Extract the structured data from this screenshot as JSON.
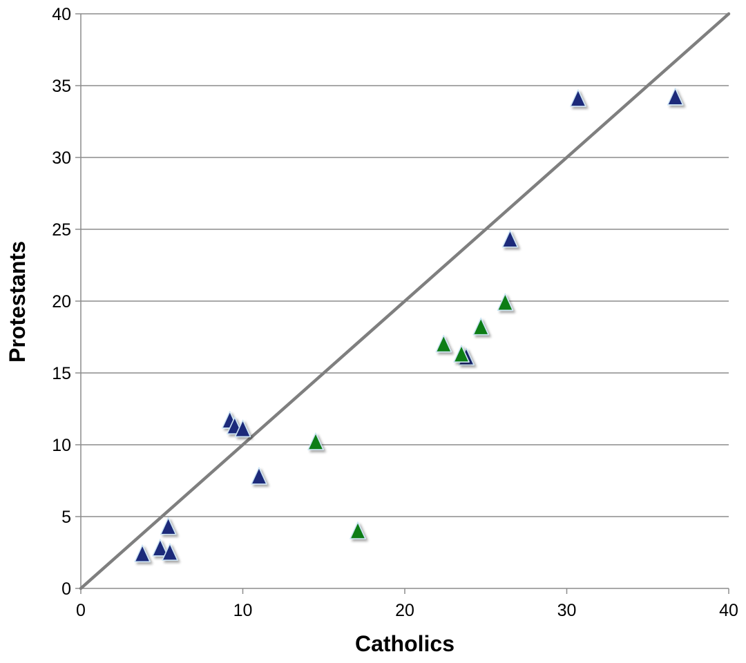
{
  "chart_data": {
    "type": "scatter",
    "title": "",
    "xlabel": "Catholics",
    "ylabel": "Protestants",
    "xlim": [
      0,
      40
    ],
    "ylim": [
      0,
      40
    ],
    "xticks": [
      0,
      10,
      20,
      30,
      40
    ],
    "yticks": [
      0,
      5,
      10,
      15,
      20,
      25,
      30,
      35,
      40
    ],
    "grid": "horizontal",
    "legend": "none",
    "marker": "triangle",
    "reference_line": {
      "type": "identity",
      "x": [
        0,
        40
      ],
      "y": [
        0,
        40
      ],
      "color": "#7f7f7f"
    },
    "series": [
      {
        "color": "#1f2a7a",
        "points": [
          {
            "x": 3.8,
            "y": 2.3
          },
          {
            "x": 4.9,
            "y": 2.7
          },
          {
            "x": 5.5,
            "y": 2.4
          },
          {
            "x": 5.4,
            "y": 4.2
          },
          {
            "x": 9.2,
            "y": 11.6
          },
          {
            "x": 9.5,
            "y": 11.2
          },
          {
            "x": 10.0,
            "y": 11.0
          },
          {
            "x": 11.0,
            "y": 7.7
          },
          {
            "x": 23.8,
            "y": 16.0
          },
          {
            "x": 26.5,
            "y": 24.2
          },
          {
            "x": 30.7,
            "y": 34.0
          },
          {
            "x": 36.7,
            "y": 34.1
          }
        ]
      },
      {
        "color": "#0a7d12",
        "points": [
          {
            "x": 14.5,
            "y": 10.1
          },
          {
            "x": 17.1,
            "y": 3.9
          },
          {
            "x": 22.4,
            "y": 16.9
          },
          {
            "x": 23.5,
            "y": 16.2
          },
          {
            "x": 24.7,
            "y": 18.1
          },
          {
            "x": 26.2,
            "y": 19.8
          }
        ]
      }
    ]
  }
}
